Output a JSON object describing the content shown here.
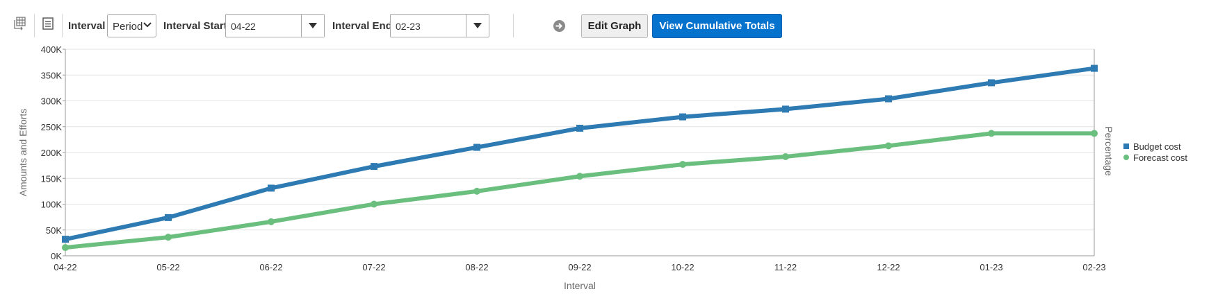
{
  "toolbar": {
    "icons": [
      "pivot-table-icon",
      "list-view-icon",
      "go-arrow-icon"
    ],
    "interval_label": "Interval",
    "interval_value": "Period",
    "interval_start_label": "Interval Start",
    "interval_start_value": "04-22",
    "interval_end_label": "Interval End",
    "interval_end_value": "02-23",
    "edit_graph_label": "Edit Graph",
    "view_cumulative_label": "View Cumulative Totals",
    "colors": {
      "primary_button": "#0572ce"
    }
  },
  "chart_data": {
    "type": "line",
    "categories": [
      "04-22",
      "05-22",
      "06-22",
      "07-22",
      "08-22",
      "09-22",
      "10-22",
      "11-22",
      "12-22",
      "01-23",
      "02-23"
    ],
    "series": [
      {
        "name": "Budget cost",
        "color": "#2e7bb4",
        "marker": "square",
        "values": [
          32000,
          74000,
          131000,
          173000,
          210000,
          247000,
          269000,
          284000,
          304000,
          335000,
          363000
        ]
      },
      {
        "name": "Forecast cost",
        "color": "#6bbf7e",
        "marker": "circle",
        "values": [
          16000,
          36000,
          66000,
          100000,
          125000,
          154000,
          177000,
          192000,
          213000,
          237000,
          237000
        ]
      }
    ],
    "xlabel": "Interval",
    "ylabel": "Amounts and Efforts",
    "y2label": "Percentage",
    "ylim": [
      0,
      400000
    ],
    "yticks": [
      "0K",
      "50K",
      "100K",
      "150K",
      "200K",
      "250K",
      "300K",
      "350K",
      "400K"
    ],
    "grid": true,
    "legend_position": "right"
  }
}
